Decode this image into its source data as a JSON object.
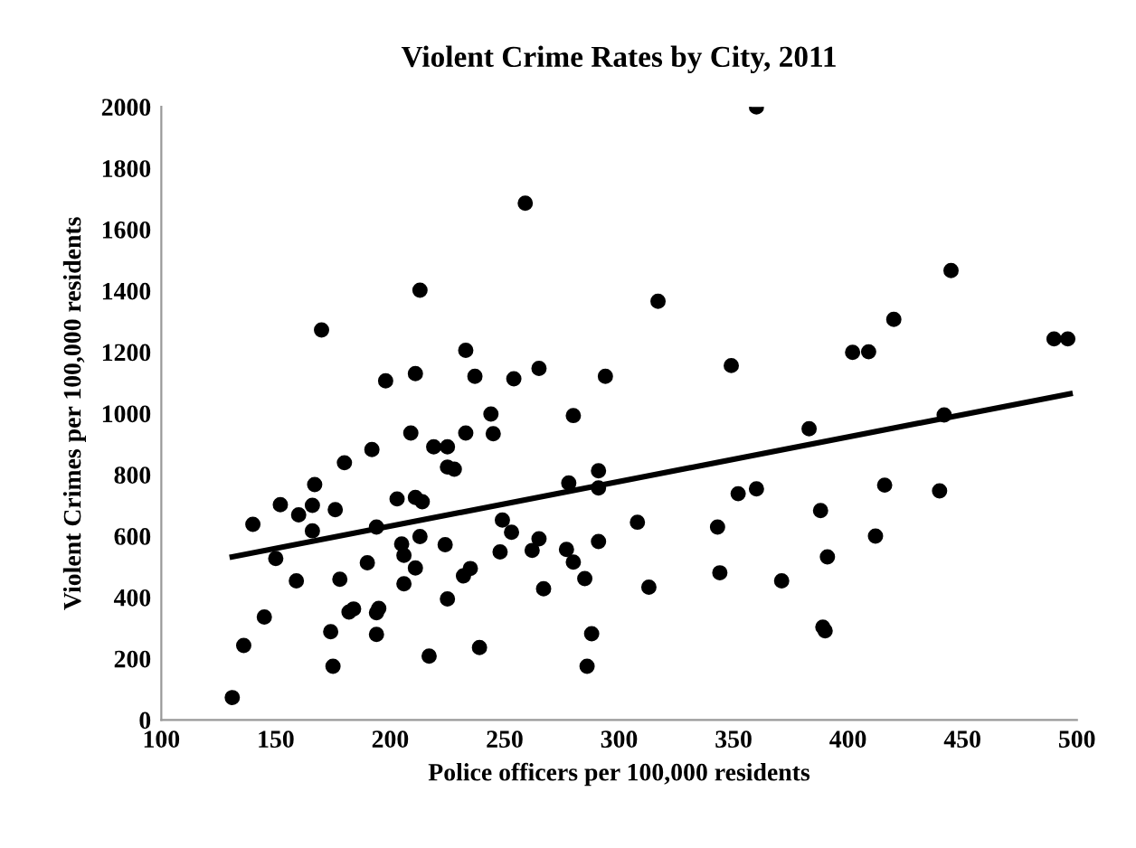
{
  "chart_data": {
    "type": "scatter",
    "title": "Violent Crime Rates by City, 2011",
    "xlabel": "Police officers per 100,000 residents",
    "ylabel": "Violent Crimes per 100,000 residents",
    "xlim": [
      100,
      500
    ],
    "xticks": [
      100,
      150,
      200,
      250,
      300,
      350,
      400,
      450,
      500
    ],
    "ylim": [
      0,
      2000
    ],
    "yticks": [
      0,
      200,
      400,
      600,
      800,
      1000,
      1200,
      1400,
      1600,
      1800,
      2000
    ],
    "grid": false,
    "legend": false,
    "marker": "circle",
    "series": [
      {
        "color": "#000000",
        "x": [
          131,
          136,
          140,
          145,
          150,
          152,
          159,
          160,
          166,
          166,
          167,
          170,
          174,
          175,
          176,
          178,
          180,
          182,
          184,
          190,
          192,
          194,
          194,
          194,
          195,
          198,
          203,
          205,
          206,
          206,
          209,
          211,
          211,
          211,
          213,
          213,
          214,
          217,
          219,
          224,
          225,
          225,
          225,
          228,
          232,
          233,
          233,
          235,
          237,
          239,
          244,
          245,
          248,
          249,
          253,
          254,
          259,
          262,
          265,
          265,
          267,
          277,
          278,
          280,
          280,
          285,
          286,
          288,
          291,
          291,
          291,
          294,
          308,
          313,
          317,
          343,
          344,
          349,
          352,
          360,
          360,
          371,
          383,
          388,
          389,
          390,
          391,
          402,
          409,
          412,
          416,
          420,
          440,
          442,
          445,
          490,
          496
        ],
        "values": [
          73,
          243,
          638,
          336,
          527,
          702,
          454,
          669,
          700,
          617,
          768,
          1272,
          288,
          175,
          686,
          459,
          839,
          352,
          362,
          513,
          882,
          629,
          279,
          350,
          364,
          1106,
          721,
          574,
          444,
          537,
          936,
          1130,
          496,
          726,
          1402,
          598,
          712,
          208,
          891,
          572,
          891,
          395,
          825,
          818,
          470,
          936,
          1206,
          494,
          1121,
          236,
          998,
          934,
          548,
          652,
          612,
          1113,
          1686,
          553,
          591,
          1147,
          428,
          556,
          773,
          993,
          515,
          461,
          175,
          281,
          582,
          813,
          757,
          1121,
          645,
          433,
          1366,
          629,
          480,
          1156,
          738,
          754,
          2000,
          454,
          950,
          683,
          303,
          291,
          532,
          1199,
          1201,
          600,
          766,
          1307,
          747,
          995,
          1466,
          1243,
          1243
        ]
      },
      {
        "type": "line",
        "color": "#000000",
        "marker": "none",
        "line_style": "solid",
        "x": [
          131,
          497
        ],
        "values": [
          532,
          1064
        ]
      }
    ]
  }
}
